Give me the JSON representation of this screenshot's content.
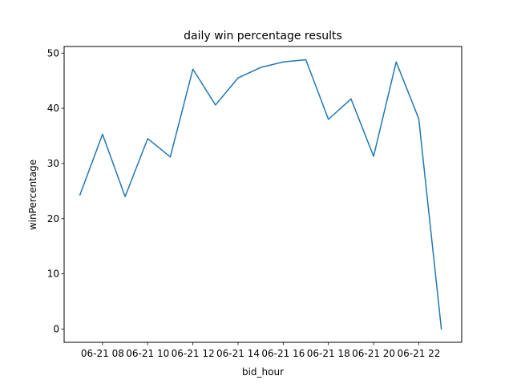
{
  "chart_data": {
    "type": "line",
    "title": "daily win percentage results",
    "xlabel": "bid_hour",
    "ylabel": "winPercentage",
    "x_tick_labels": [
      "06-21 08",
      "06-21 10",
      "06-21 12",
      "06-21 14",
      "06-21 16",
      "06-21 18",
      "06-21 20",
      "06-21 22"
    ],
    "x_tick_hours": [
      8,
      10,
      12,
      14,
      16,
      18,
      20,
      22
    ],
    "y_ticks": [
      0,
      10,
      20,
      30,
      40,
      50
    ],
    "xlim_hours": [
      6.3,
      23.9
    ],
    "ylim": [
      -2.4,
      51.2
    ],
    "grid": false,
    "series": [
      {
        "color": "#1f77b4",
        "x_hours": [
          7,
          8,
          9,
          10,
          11,
          12,
          13,
          14,
          15,
          16,
          17,
          18,
          19,
          20,
          21,
          22,
          23
        ],
        "values": [
          24.3,
          35.3,
          24.0,
          34.5,
          31.2,
          47.1,
          40.6,
          45.5,
          47.4,
          48.4,
          48.8,
          38.0,
          41.7,
          31.3,
          48.4,
          38.1,
          0.0
        ]
      }
    ]
  }
}
